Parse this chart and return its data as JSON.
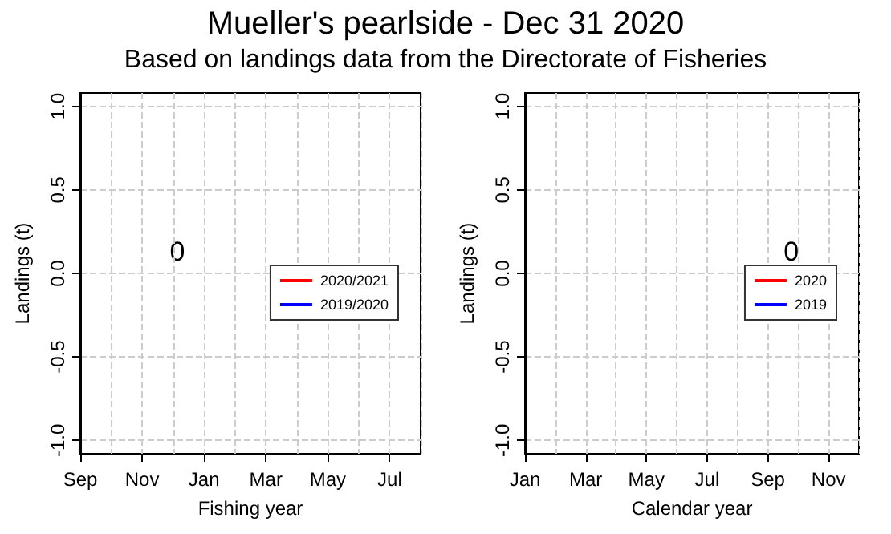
{
  "chart_data": [
    {
      "type": "line",
      "title": "Mueller's pearlside - Dec 31 2020",
      "subtitle": "Based on landings data from the Directorate of Fisheries",
      "xlabel": "Fishing year",
      "ylabel": "Landings (t)",
      "categories": [
        "Sep",
        null,
        "Nov",
        null,
        "Jan",
        null,
        "Mar",
        null,
        "May",
        null,
        "Jul",
        null
      ],
      "series": [
        {
          "name": "2020/2021",
          "color": "#ff0000",
          "values": [
            null,
            null,
            null,
            null,
            null,
            null,
            null,
            null,
            null,
            null,
            null,
            null
          ]
        },
        {
          "name": "2019/2020",
          "color": "#0000ff",
          "values": [
            null,
            null,
            null,
            null,
            null,
            null,
            null,
            null,
            null,
            null,
            null,
            null
          ]
        }
      ],
      "annotations": [
        "0"
      ],
      "ylim": [
        -1.08,
        1.08
      ],
      "yticks": [
        {
          "value": -1,
          "label": "-1.0"
        },
        {
          "value": -0.5,
          "label": "-0.5"
        },
        {
          "value": 0,
          "label": "0.0"
        },
        {
          "value": 0.5,
          "label": "0.5"
        },
        {
          "value": 1,
          "label": "1.0"
        }
      ],
      "grid": true,
      "legend": "right"
    },
    {
      "type": "line",
      "xlabel": "Calendar year",
      "ylabel": "Landings (t)",
      "categories": [
        "Jan",
        null,
        "Mar",
        null,
        "May",
        null,
        "Jul",
        null,
        "Sep",
        null,
        "Nov",
        null
      ],
      "series": [
        {
          "name": "2020",
          "color": "#ff0000",
          "values": [
            null,
            null,
            null,
            null,
            null,
            null,
            null,
            null,
            null,
            null,
            null,
            null
          ]
        },
        {
          "name": "2019",
          "color": "#0000ff",
          "values": [
            null,
            null,
            null,
            null,
            null,
            null,
            null,
            null,
            null,
            null,
            null,
            null
          ]
        }
      ],
      "annotations": [
        "0"
      ],
      "ylim": [
        -1.08,
        1.08
      ],
      "yticks": [
        {
          "value": -1,
          "label": "-1.0"
        },
        {
          "value": -0.5,
          "label": "-0.5"
        },
        {
          "value": 0,
          "label": "0.0"
        },
        {
          "value": 0.5,
          "label": "0.5"
        },
        {
          "value": 1,
          "label": "1.0"
        }
      ],
      "grid": true,
      "legend": "right"
    }
  ]
}
